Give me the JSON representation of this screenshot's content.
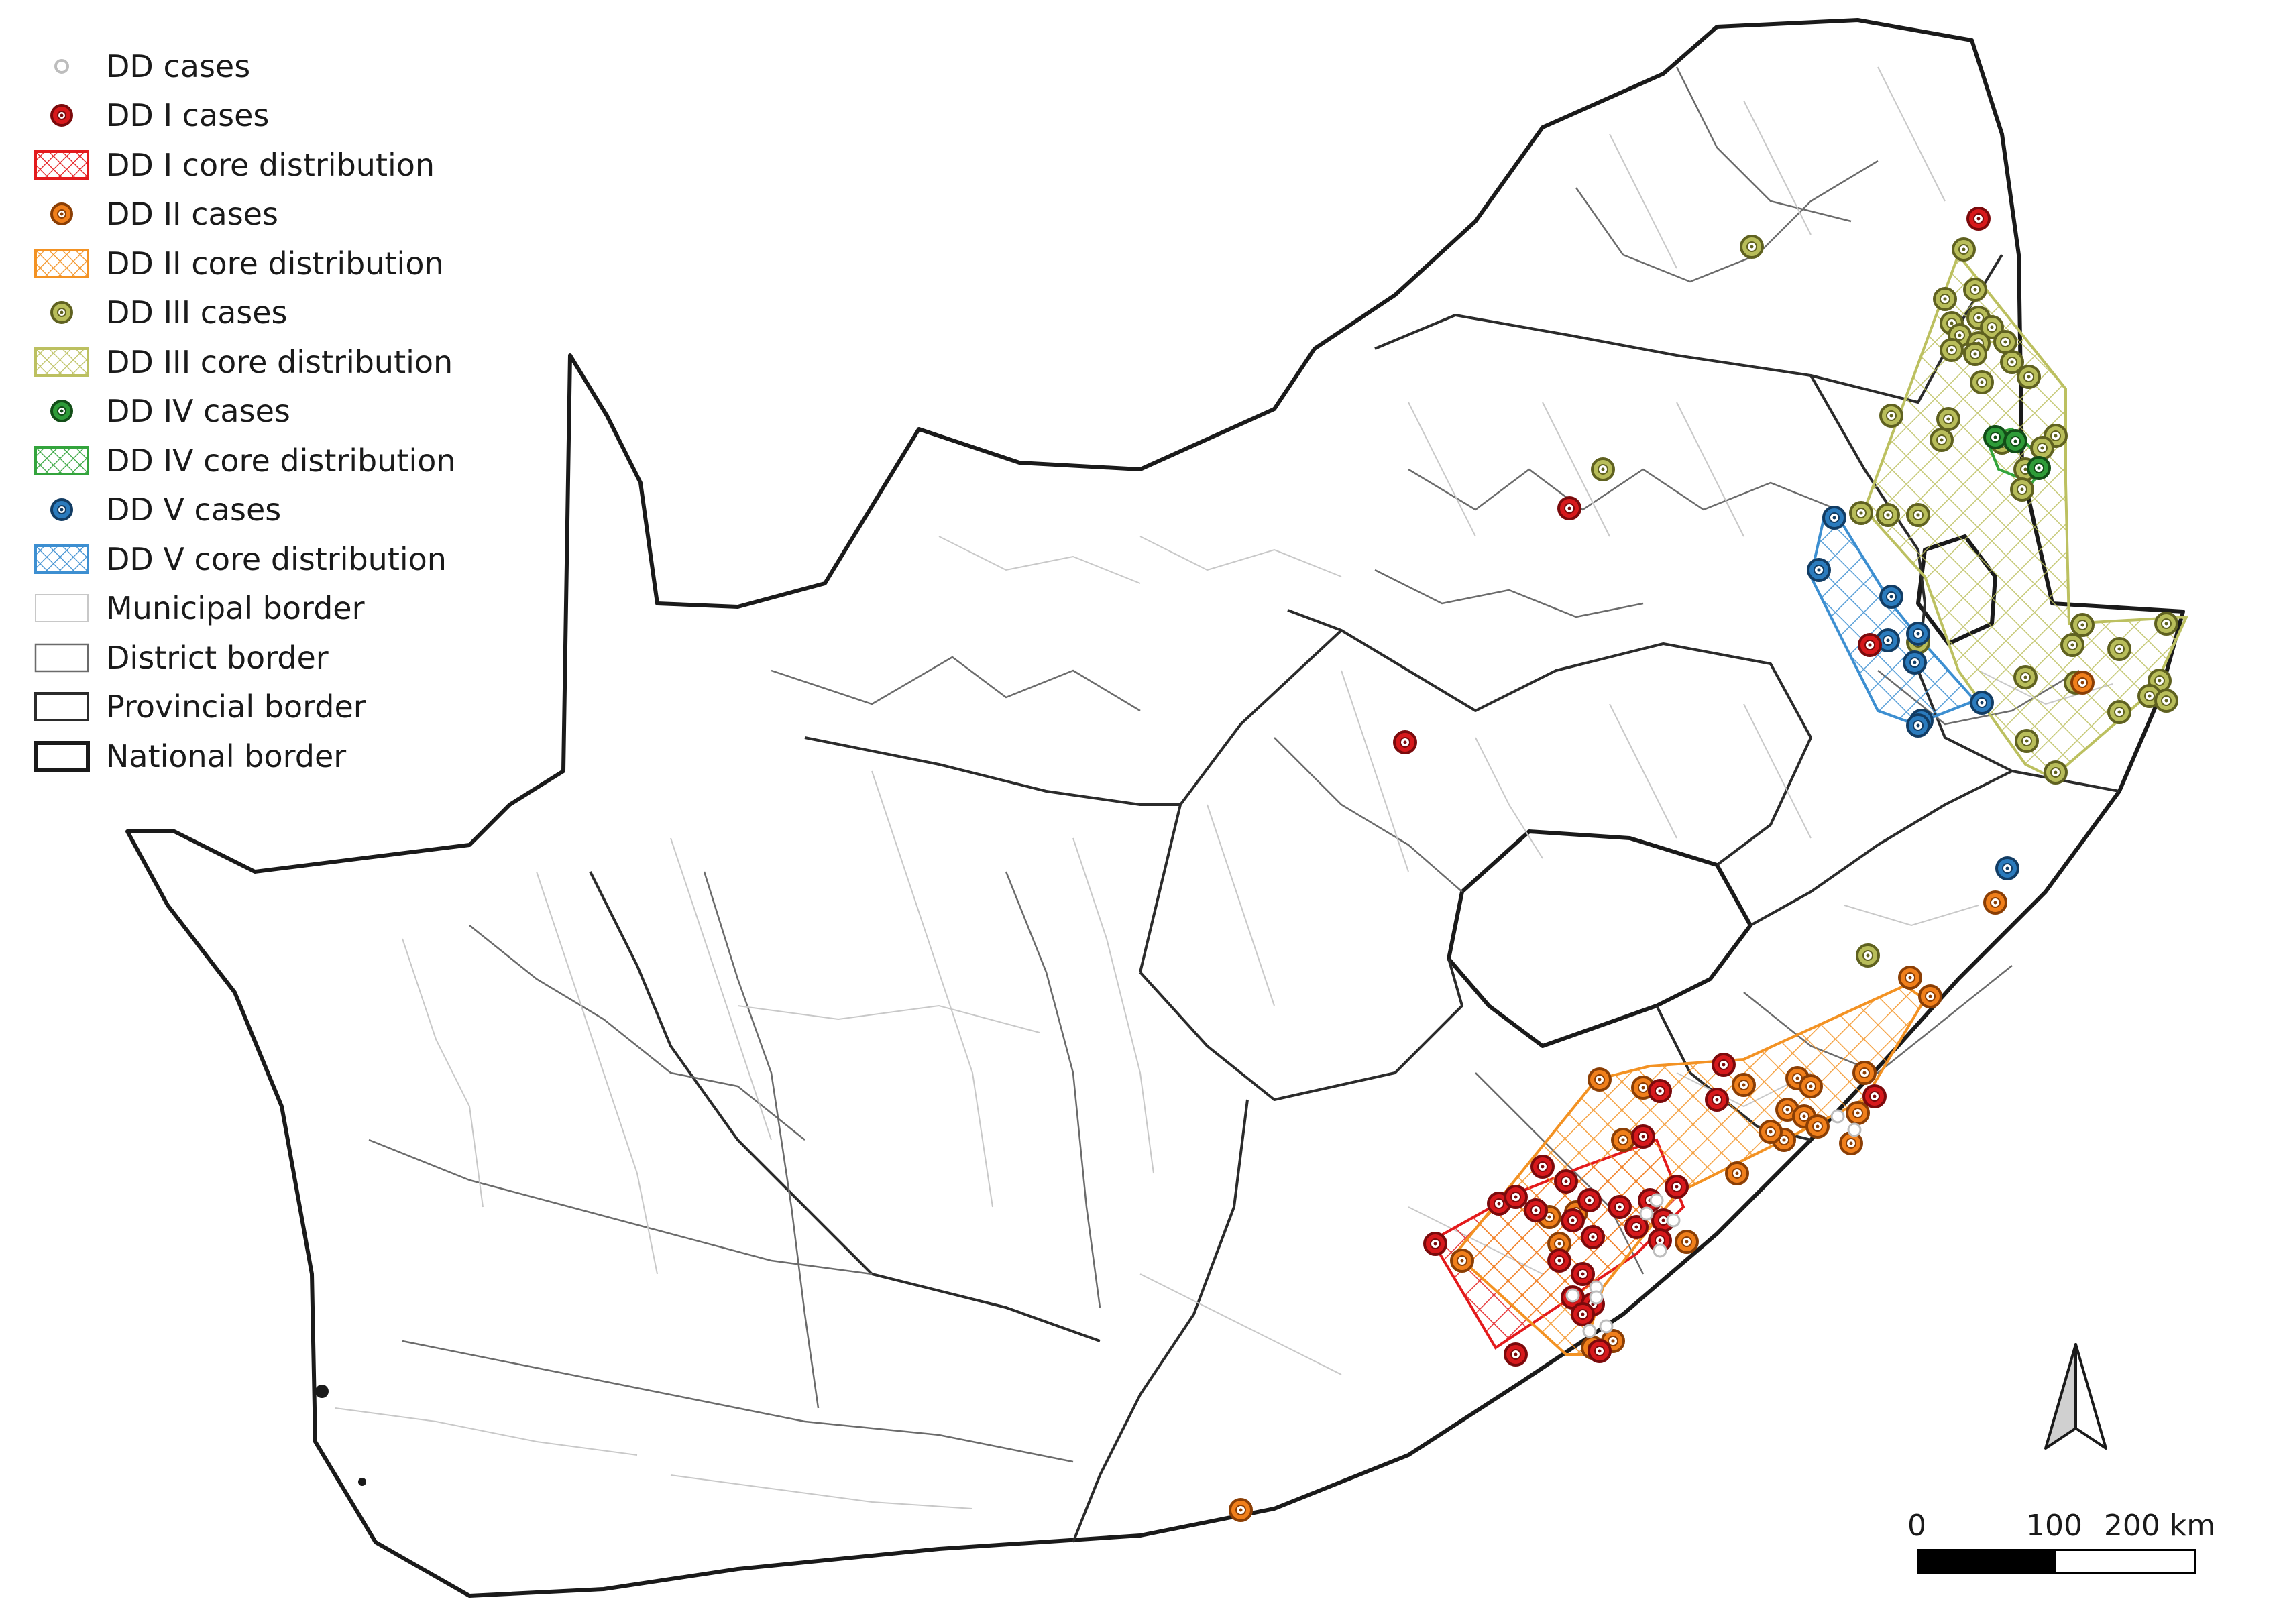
{
  "legend": [
    {
      "label": "DD cases",
      "kind": "point",
      "fill": "#ffffff",
      "stroke": "#bdbdbd"
    },
    {
      "label": "DD I cases",
      "kind": "point",
      "fill": "#d7191c",
      "stroke": "#7a0a0c"
    },
    {
      "label": "DD I core distribution",
      "kind": "area",
      "color": "#e31a1c"
    },
    {
      "label": "DD II cases",
      "kind": "point",
      "fill": "#f07f1b",
      "stroke": "#8a3e05"
    },
    {
      "label": "DD II core distribution",
      "kind": "area",
      "color": "#f39223"
    },
    {
      "label": "DD III cases",
      "kind": "point",
      "fill": "#b8bd5a",
      "stroke": "#5f6120"
    },
    {
      "label": "DD III core distribution",
      "kind": "area",
      "color": "#bcc060"
    },
    {
      "label": "DD IV cases",
      "kind": "point",
      "fill": "#2e9b38",
      "stroke": "#124d17"
    },
    {
      "label": "DD IV core distribution",
      "kind": "area",
      "color": "#33a43c"
    },
    {
      "label": "DD V cases",
      "kind": "point",
      "fill": "#2b7bbd",
      "stroke": "#123c63"
    },
    {
      "label": "DD V core distribution",
      "kind": "area",
      "color": "#3d8fd1"
    },
    {
      "label": "Municipal border",
      "kind": "border",
      "color": "#c8c8c8",
      "width": 2
    },
    {
      "label": "District border",
      "kind": "border",
      "color": "#6b6b6b",
      "width": 2.5
    },
    {
      "label": "Provincial border",
      "kind": "border",
      "color": "#2b2b2b",
      "width": 4
    },
    {
      "label": "National border",
      "kind": "border",
      "color": "#1a1a1a",
      "width": 6
    }
  ],
  "scale_bar": {
    "labels": [
      "0",
      "100",
      "200 km"
    ]
  },
  "north_arrow": "north-arrow-icon"
}
